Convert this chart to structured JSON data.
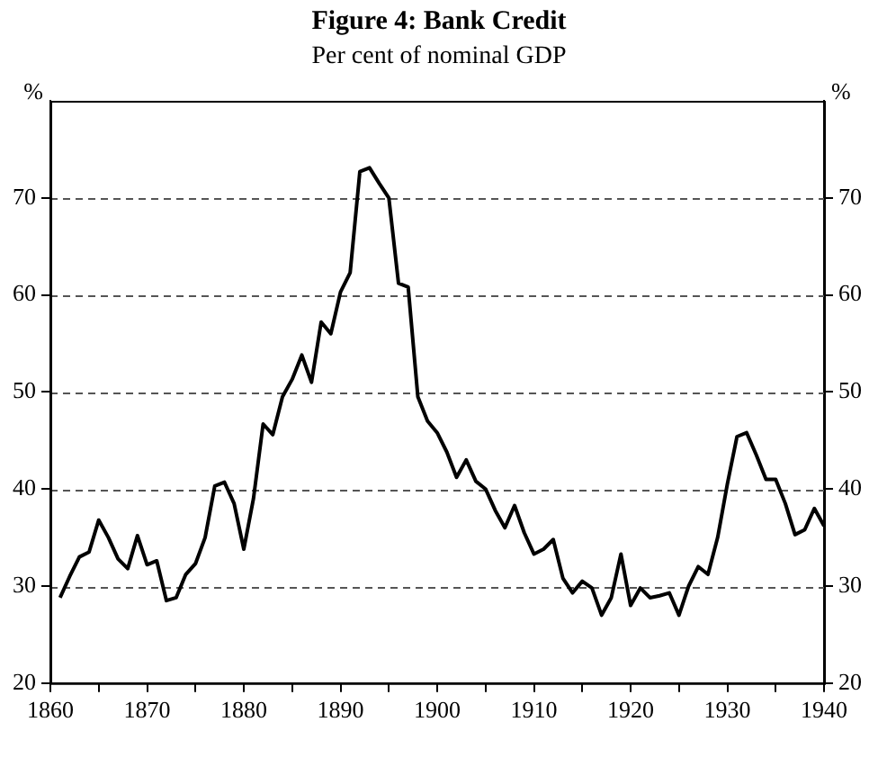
{
  "chart_data": {
    "type": "line",
    "title": "Figure 4: Bank Credit",
    "subtitle": "Per cent of nominal GDP",
    "ylabel": "%",
    "y2label": "%",
    "x": [
      1861,
      1862,
      1863,
      1864,
      1865,
      1866,
      1867,
      1868,
      1869,
      1870,
      1871,
      1872,
      1873,
      1874,
      1875,
      1876,
      1877,
      1878,
      1879,
      1880,
      1881,
      1882,
      1883,
      1884,
      1885,
      1886,
      1887,
      1888,
      1889,
      1890,
      1891,
      1892,
      1893,
      1894,
      1895,
      1896,
      1897,
      1898,
      1899,
      1900,
      1901,
      1902,
      1903,
      1904,
      1905,
      1906,
      1907,
      1908,
      1909,
      1910,
      1911,
      1912,
      1913,
      1914,
      1915,
      1916,
      1917,
      1918,
      1919,
      1920,
      1921,
      1922,
      1923,
      1924,
      1925,
      1926,
      1927,
      1928,
      1929,
      1930,
      1931,
      1932,
      1933,
      1934,
      1935,
      1936,
      1937,
      1938,
      1939,
      1940
    ],
    "series": [
      {
        "color": "#000000",
        "values": [
          28.8,
          31,
          33,
          33.5,
          36.8,
          35,
          32.8,
          31.8,
          35.2,
          32.2,
          32.6,
          28.5,
          28.8,
          31.2,
          32.3,
          35,
          40.3,
          40.7,
          38.5,
          33.8,
          39,
          46.7,
          45.6,
          49.5,
          51.3,
          53.8,
          51,
          57.2,
          56,
          60.3,
          62.3,
          72.7,
          73.1,
          71.5,
          70,
          61.2,
          60.8,
          49.5,
          47,
          45.8,
          43.8,
          41.2,
          43,
          40.8,
          40,
          37.8,
          36,
          38.3,
          35.5,
          33.3,
          33.8,
          34.8,
          30.8,
          29.3,
          30.5,
          29.8,
          27,
          28.8,
          33.3,
          28,
          29.8,
          28.8,
          29,
          29.3,
          27,
          30,
          32,
          31.2,
          35,
          40.5,
          45.4,
          45.8,
          43.5,
          41,
          41,
          38.5,
          35.3,
          35.8,
          38,
          36.2
        ]
      }
    ],
    "xlim": [
      1860,
      1940
    ],
    "xticks": [
      1860,
      {
        "value": 1865,
        "label": null
      },
      1870,
      {
        "value": 1875,
        "label": null
      },
      1880,
      {
        "value": 1885,
        "label": null
      },
      1890,
      {
        "value": 1895,
        "label": null
      },
      1900,
      {
        "value": 1905,
        "label": null
      },
      1910,
      {
        "value": 1915,
        "label": null
      },
      1920,
      {
        "value": 1925,
        "label": null
      },
      1930,
      {
        "value": 1935,
        "label": null
      },
      1940
    ],
    "ylim": [
      20,
      80
    ],
    "yticks": [
      20,
      30,
      40,
      50,
      60,
      70
    ],
    "y2lim": [
      20,
      80
    ],
    "y2ticks": [
      20,
      30,
      40,
      50,
      60,
      70
    ],
    "grid": "y",
    "legend": false,
    "marker": "none",
    "line_style": "solid"
  }
}
